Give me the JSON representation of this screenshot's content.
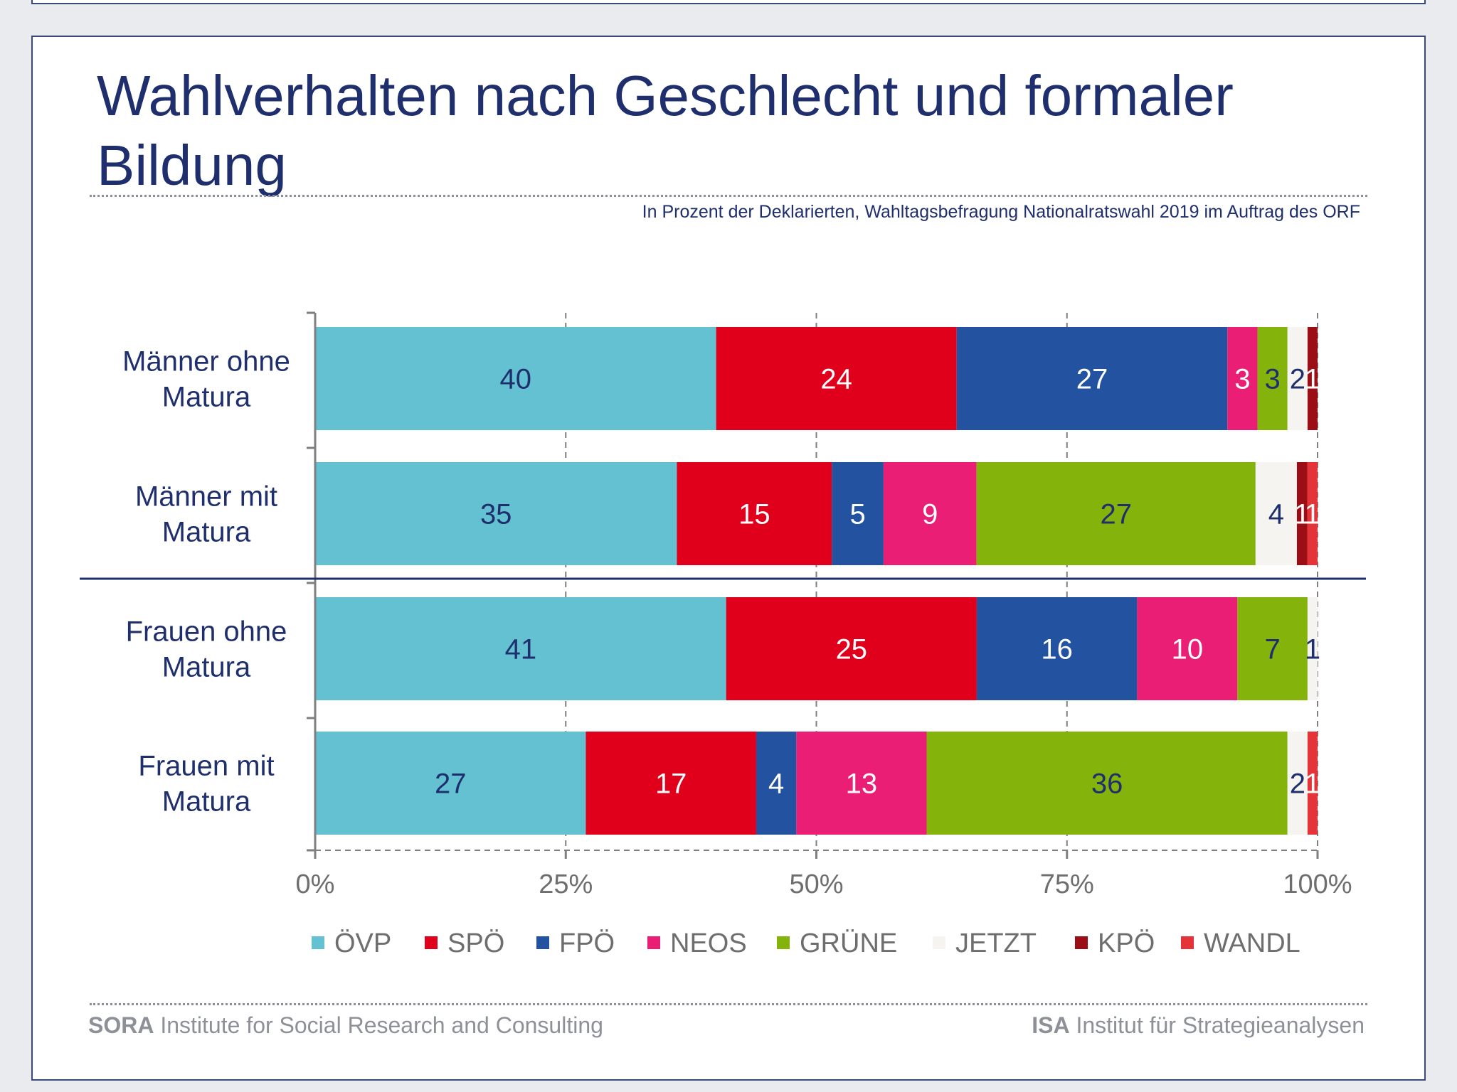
{
  "title": "Wahlverhalten nach Geschlecht und formaler Bildung",
  "subtitle": "In Prozent der Deklarierten, Wahltagsbefragung Nationalratswahl 2019 im Auftrag des ORF",
  "footer": {
    "left_bold": "SORA",
    "left_text": "Institute for Social Research and Consulting",
    "right_bold": "ISA",
    "right_text": "Institut für Strategieanalysen"
  },
  "chart_data": {
    "type": "bar",
    "orientation": "horizontal",
    "stacked": true,
    "normalized": "percent",
    "categories": [
      [
        "Männer ohne",
        "Matura"
      ],
      [
        "Männer mit",
        "Matura"
      ],
      [
        "Frauen ohne",
        "Matura"
      ],
      [
        "Frauen mit",
        "Matura"
      ]
    ],
    "series": [
      {
        "name": "ÖVP",
        "color": "#63c1d2",
        "label_color": "#1f2f6e",
        "values": [
          40,
          35,
          41,
          27
        ]
      },
      {
        "name": "SPÖ",
        "color": "#e0001b",
        "label_color": "#ffffff",
        "values": [
          24,
          15,
          25,
          17
        ]
      },
      {
        "name": "FPÖ",
        "color": "#2352a1",
        "label_color": "#ffffff",
        "values": [
          27,
          5,
          16,
          4
        ]
      },
      {
        "name": "NEOS",
        "color": "#e91e74",
        "label_color": "#ffffff",
        "values": [
          3,
          9,
          10,
          13
        ]
      },
      {
        "name": "GRÜNE",
        "color": "#84b30b",
        "label_color": "#1f2f6e",
        "values": [
          3,
          27,
          7,
          36
        ]
      },
      {
        "name": "JETZT",
        "color": "#f5f4f0",
        "label_color": "#1f2f6e",
        "values": [
          2,
          4,
          1,
          2
        ]
      },
      {
        "name": "KPÖ",
        "color": "#9b0e15",
        "label_color": "#ffffff",
        "values": [
          1,
          1,
          0,
          0
        ]
      },
      {
        "name": "WANDL",
        "color": "#e5333a",
        "label_color": "#ffffff",
        "values": [
          0,
          1,
          0,
          1
        ]
      }
    ],
    "xticks": [
      "0%",
      "25%",
      "50%",
      "75%",
      "100%"
    ],
    "xlim": [
      0,
      100
    ],
    "grid": "vertical dashed",
    "legend": "bottom"
  }
}
